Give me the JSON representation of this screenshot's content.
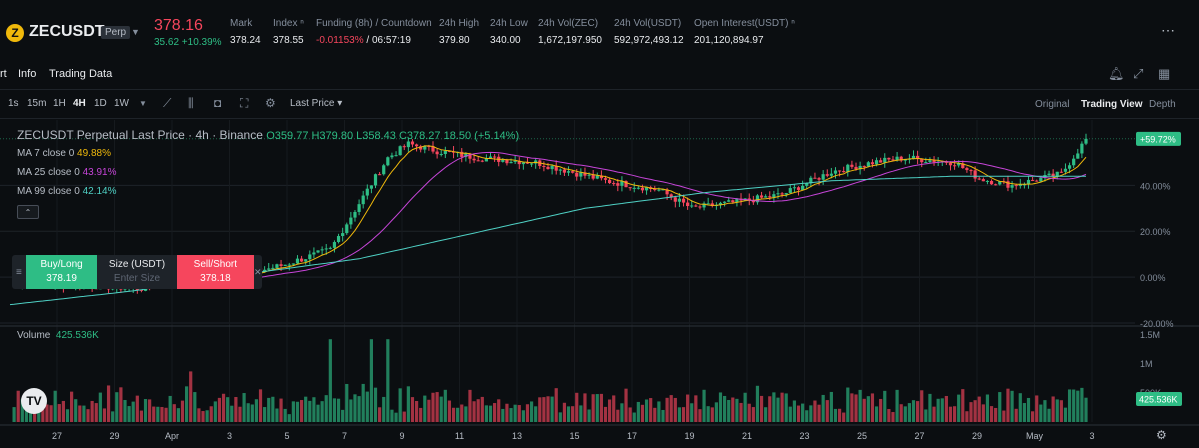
{
  "header": {
    "coin_glyph": "Z",
    "symbol": "ZECUSDT",
    "badge": "Perp",
    "last_price": "378.16",
    "change": "35.62 +10.39%",
    "stats": [
      {
        "label": "Mark",
        "value": "378.24"
      },
      {
        "label": "Index ⁿ",
        "value": "378.55"
      },
      {
        "label": "Funding (8h) / Countdown",
        "value_neg": "-0.01153%",
        "value_rest": " / 06:57:19"
      },
      {
        "label": "24h High",
        "value": "379.80"
      },
      {
        "label": "24h Low",
        "value": "340.00"
      },
      {
        "label": "24h Vol(ZEC)",
        "value": "1,672,197.950"
      },
      {
        "label": "24h Vol(USDT)",
        "value": "592,972,493.12"
      },
      {
        "label": "Open Interest(USDT) ⁿ",
        "value": "201,120,894.97"
      }
    ]
  },
  "tabs": [
    "rt",
    "Info",
    "Trading Data"
  ],
  "toolbar": {
    "intervals": [
      "1s",
      "15m",
      "1H",
      "4H",
      "1D",
      "1W"
    ],
    "active_interval": "4H",
    "price_type": "Last Price ▾",
    "views": [
      "Original",
      "Trading View",
      "Depth"
    ],
    "active_view": "Trading View"
  },
  "legend": {
    "title": "ZECUSDT Perpetual Last Price · 4h · Binance",
    "ohlc": "O359.77 H379.80 L358.43 C378.27 18.50 (+5.14%)",
    "ma7_label": "MA 7 close 0",
    "ma7_value": "49.88%",
    "ma25_label": "MA 25 close 0",
    "ma25_value": "43.91%",
    "ma99_label": "MA 99 close 0",
    "ma99_value": "42.14%"
  },
  "order_widget": {
    "buy_label": "Buy/Long",
    "buy_price": "378.19",
    "size_label": "Size (USDT)",
    "size_placeholder": "Enter Size",
    "sell_label": "Sell/Short",
    "sell_price": "378.18"
  },
  "volume": {
    "label": "Volume",
    "value": "425.536K"
  },
  "colors": {
    "up": "#2ebd85",
    "down": "#f6465d",
    "ma7": "#f0b90b",
    "ma25": "#c745d9",
    "ma99": "#4fd1c5",
    "bg": "#0b0e11"
  },
  "chart_data": {
    "type": "candlestick",
    "y_axis_ticks": [
      "40.00%",
      "20.00%",
      "0.00%",
      "-20.00%"
    ],
    "current_label": "+59.72%",
    "volume_ticks": [
      "1.5M",
      "1M",
      "500K"
    ],
    "current_volume_label": "425.536K",
    "x_ticks": [
      "27",
      "29",
      "Apr",
      "3",
      "5",
      "7",
      "9",
      "11",
      "13",
      "15",
      "17",
      "19",
      "21",
      "23",
      "25",
      "27",
      "29",
      "May",
      "3"
    ],
    "ylim": [
      -20,
      65
    ],
    "anchors": [
      [
        0,
        -2
      ],
      [
        10,
        -3
      ],
      [
        22,
        -4
      ],
      [
        32,
        -5
      ],
      [
        45,
        0
      ],
      [
        56,
        1
      ],
      [
        66,
        5
      ],
      [
        78,
        12
      ],
      [
        86,
        35
      ],
      [
        92,
        52
      ],
      [
        97,
        58
      ],
      [
        104,
        55
      ],
      [
        114,
        52
      ],
      [
        128,
        50
      ],
      [
        145,
        42
      ],
      [
        158,
        38
      ],
      [
        166,
        30
      ],
      [
        178,
        33
      ],
      [
        188,
        36
      ],
      [
        200,
        46
      ],
      [
        210,
        50
      ],
      [
        218,
        52
      ],
      [
        230,
        50
      ],
      [
        236,
        43
      ],
      [
        244,
        40
      ],
      [
        256,
        45
      ],
      [
        262,
        60
      ]
    ],
    "ma99_anchors": [
      [
        0,
        -12
      ],
      [
        30,
        -6
      ],
      [
        60,
        2
      ],
      [
        85,
        8
      ],
      [
        110,
        18
      ],
      [
        140,
        30
      ],
      [
        170,
        37
      ],
      [
        200,
        42
      ],
      [
        230,
        44
      ],
      [
        262,
        44
      ]
    ]
  }
}
